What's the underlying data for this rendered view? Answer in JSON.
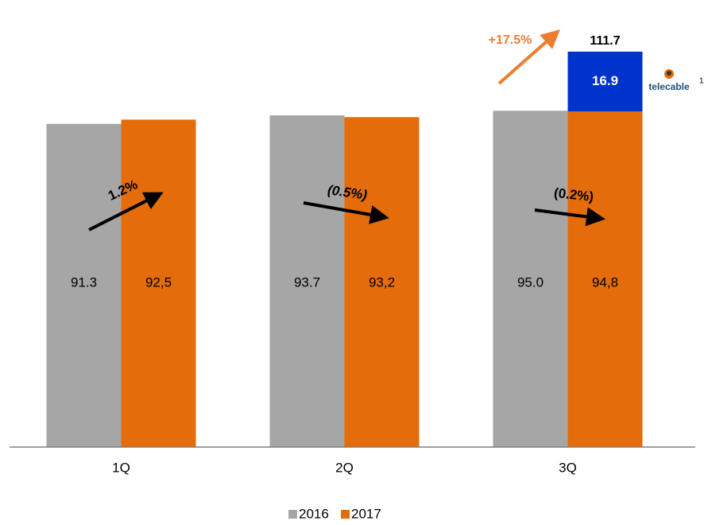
{
  "chart_data": {
    "type": "bar",
    "categories": [
      "1Q",
      "2Q",
      "3Q"
    ],
    "series": [
      {
        "name": "2016",
        "color": "#a6a6a6",
        "values": [
          91.3,
          93.7,
          95.0
        ],
        "value_labels": [
          "91.3",
          "93.7",
          "95.0"
        ]
      },
      {
        "name": "2017",
        "color": "#e46c0a",
        "values": [
          92.5,
          93.2,
          94.8
        ],
        "value_labels": [
          "92,5",
          "93,2",
          "94,8"
        ]
      },
      {
        "name": "telecable",
        "color": "#0033cc",
        "values": [
          null,
          null,
          16.9
        ],
        "stack_on": 1,
        "footnote": "1"
      }
    ],
    "stack_total": {
      "value": 111.7,
      "label": "111.7"
    },
    "annotations": [
      "1.2%",
      "(0.5%)",
      "(0.2%)",
      "+17.5%"
    ],
    "ylim": [
      0,
      120
    ]
  }
}
